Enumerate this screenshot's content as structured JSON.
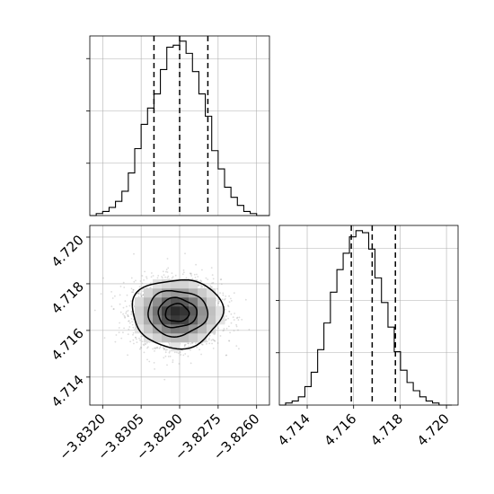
{
  "chart_data": {
    "type": "corner",
    "parameters": [
      {
        "name": "",
        "range": [
          -3.8325,
          -3.8255
        ],
        "ticks": [
          "−3.8320",
          "−3.8305",
          "−3.8290",
          "−3.8275",
          "−3.8260"
        ],
        "tick_values": [
          -3.832,
          -3.8305,
          -3.829,
          -3.8275,
          -3.826
        ]
      },
      {
        "name": "",
        "range": [
          4.7128,
          4.7205
        ],
        "ticks": [
          "4.714",
          "4.716",
          "4.718",
          "4.720"
        ],
        "tick_values": [
          4.714,
          4.716,
          4.718,
          4.72
        ]
      }
    ],
    "hist_a": {
      "bin_edges": [
        -3.8325,
        -3.83225,
        -3.832,
        -3.83175,
        -3.8315,
        -3.83125,
        -3.831,
        -3.83075,
        -3.8305,
        -3.83025,
        -3.83,
        -3.82975,
        -3.8295,
        -3.82925,
        -3.829,
        -3.82875,
        -3.8285,
        -3.82825,
        -3.828,
        -3.82775,
        -3.8275,
        -3.82725,
        -3.827,
        -3.82675,
        -3.8265,
        -3.82625,
        -3.826,
        -3.82575,
        -3.8255
      ],
      "counts": [
        0,
        1,
        2,
        4,
        7,
        12,
        21,
        33,
        45,
        53,
        60,
        72,
        83,
        84,
        86,
        80,
        71,
        60,
        49,
        32,
        23,
        14,
        9,
        5,
        2,
        1,
        0,
        0
      ],
      "quantiles": [
        -3.83,
        -3.829,
        -3.8279
      ]
    },
    "hist_b": {
      "bin_edges": [
        4.7128,
        4.71307,
        4.71335,
        4.71362,
        4.7139,
        4.71417,
        4.71445,
        4.71472,
        4.715,
        4.71528,
        4.71555,
        4.71582,
        4.7161,
        4.71638,
        4.71665,
        4.71692,
        4.7172,
        4.71748,
        4.71775,
        4.71802,
        4.7183,
        4.71857,
        4.71885,
        4.71912,
        4.7194,
        4.71968,
        4.71995,
        4.72023
      ],
      "counts": [
        0,
        1,
        2,
        4,
        9,
        16,
        27,
        40,
        55,
        66,
        74,
        82,
        85,
        84,
        76,
        62,
        50,
        38,
        26,
        17,
        11,
        7,
        4,
        2,
        1,
        0,
        0
      ],
      "quantiles": [
        4.7159,
        4.7168,
        4.7178
      ]
    },
    "joint": {
      "center": [
        -3.8291,
        4.71675
      ],
      "sigma": [
        0.00085,
        0.00071
      ],
      "contours": [
        {
          "level": 0.118,
          "scale": [
            1.0,
            1.0
          ]
        },
        {
          "level": 0.393,
          "scale": [
            1.0,
            1.0
          ]
        },
        {
          "level": 0.675,
          "scale": [
            1.0,
            1.0
          ]
        },
        {
          "level": 0.865,
          "scale": [
            1.0,
            1.0
          ]
        }
      ],
      "contour_color": "#000000"
    },
    "grid": true
  }
}
